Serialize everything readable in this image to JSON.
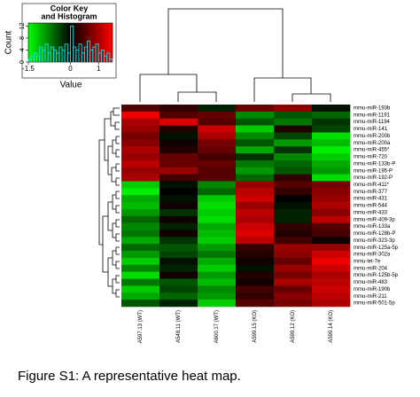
{
  "chart_data": [
    {
      "type": "heatmap",
      "columns": [
        "A597.13 (WT)",
        "A548.11 (WT)",
        "A600.17 (WT)",
        "A599.15 (KO)",
        "A599.12 (KO)",
        "A599.14 (KO)"
      ],
      "rows": [
        "mmu-miR-193b",
        "mmu-miR-1191",
        "mmu-miR-1194",
        "mmu-miR-141",
        "mmu-miR-200b",
        "mmu-miR-200a",
        "mmu-miR-455*",
        "mmu-miR-720",
        "mmu-miR-133b-P",
        "mmu-miR-195-P",
        "mmu-miR-192-P",
        "mmu-miR-411*",
        "mmu-miR-377",
        "mmu-miR-431",
        "mmu-miR-544",
        "mmu-miR-433",
        "mmu-miR-409-3p",
        "mmu-miR-133a",
        "mmu-miR-128b-P",
        "mmu-miR-323-3p",
        "mmu-miR-125a-5p",
        "mmu-miR-302a",
        "mmu-let-7e",
        "mmu-miR-204",
        "mmu-miR-125b-5p",
        "mmu-miR-483",
        "mmu-miR-190b",
        "mmu-miR-211",
        "mmu-miR-501-5p"
      ],
      "values": [
        [
          0.5,
          0.3,
          -0.2,
          0.6,
          0.8,
          -0.1
        ],
        [
          1.4,
          0.5,
          0.6,
          -0.8,
          -0.5,
          -0.6
        ],
        [
          1.0,
          1.3,
          0.5,
          -0.5,
          -0.7,
          -0.3
        ],
        [
          0.9,
          0.2,
          1.2,
          -1.2,
          0.2,
          -0.4
        ],
        [
          0.7,
          -0.1,
          1.0,
          -0.8,
          -0.4,
          -1.3
        ],
        [
          0.8,
          0.1,
          0.7,
          -0.5,
          -0.9,
          -1.1
        ],
        [
          1.0,
          0.2,
          0.6,
          -1.0,
          -0.3,
          -1.4
        ],
        [
          0.9,
          0.6,
          0.4,
          -0.3,
          -0.8,
          -1.2
        ],
        [
          1.1,
          0.6,
          0.6,
          -0.7,
          -0.6,
          -1.0
        ],
        [
          0.9,
          0.9,
          0.5,
          -0.9,
          -0.5,
          -0.9
        ],
        [
          1.0,
          0.4,
          0.5,
          -0.6,
          0.3,
          -1.3
        ],
        [
          -1.2,
          -0.1,
          -0.8,
          0.9,
          0.5,
          0.7
        ],
        [
          -1.4,
          0.0,
          -0.6,
          1.1,
          0.3,
          0.8
        ],
        [
          -1.0,
          -0.1,
          -1.2,
          1.2,
          0.0,
          0.9
        ],
        [
          -1.1,
          0.1,
          -1.3,
          0.9,
          -0.1,
          1.0
        ],
        [
          -0.9,
          -0.3,
          -1.2,
          1.1,
          -0.2,
          0.8
        ],
        [
          -0.6,
          0.1,
          -1.3,
          1.0,
          -0.2,
          1.1
        ],
        [
          -0.8,
          -0.2,
          -1.0,
          1.2,
          0.3,
          0.5
        ],
        [
          -0.7,
          0.1,
          -1.1,
          1.3,
          0.2,
          0.4
        ],
        [
          -1.0,
          -0.3,
          -1.2,
          1.1,
          0.4,
          0.1
        ],
        [
          -0.6,
          -0.5,
          -0.9,
          0.3,
          0.9,
          0.9
        ],
        [
          -0.9,
          -0.4,
          -0.7,
          0.2,
          0.8,
          1.2
        ],
        [
          -1.2,
          -0.1,
          -1.0,
          0.1,
          0.6,
          1.4
        ],
        [
          -0.8,
          -0.2,
          -1.2,
          -0.1,
          0.9,
          1.2
        ],
        [
          -1.3,
          0.1,
          -0.9,
          0.2,
          0.7,
          1.0
        ],
        [
          -0.7,
          -0.5,
          -1.1,
          0.1,
          1.0,
          1.1
        ],
        [
          -1.2,
          -0.4,
          -0.8,
          0.4,
          0.6,
          1.2
        ],
        [
          -1.0,
          -0.6,
          -0.9,
          0.3,
          0.8,
          1.1
        ],
        [
          -0.5,
          -0.2,
          -1.2,
          0.5,
          0.7,
          1.0
        ]
      ],
      "colors": [
        "#00ff00",
        "#000000",
        "#ff0000"
      ],
      "zlim": [
        -1.5,
        1.5
      ]
    },
    {
      "type": "histogram",
      "title": [
        "Color Key",
        "and Histogram"
      ],
      "xlabel": "Value",
      "ylabel": "Count",
      "bins": [
        -1.5,
        -1.4,
        -1.3,
        -1.2,
        -1.1,
        -1.0,
        -0.9,
        -0.8,
        -0.7,
        -0.6,
        -0.5,
        -0.4,
        -0.3,
        -0.2,
        -0.1,
        0.0,
        0.1,
        0.2,
        0.3,
        0.4,
        0.5,
        0.6,
        0.7,
        0.8,
        0.9,
        1.0,
        1.1,
        1.2,
        1.3,
        1.4,
        1.5
      ],
      "counts": [
        1,
        2,
        3,
        2,
        5,
        4,
        6,
        3,
        5,
        4,
        3,
        5,
        4,
        6,
        3,
        12,
        5,
        4,
        6,
        3,
        5,
        7,
        4,
        5,
        6,
        3,
        4,
        2,
        3,
        1
      ],
      "color": "#00e5ee",
      "xlim": [
        -1.5,
        1.5
      ],
      "xticks": [
        -1.5,
        0,
        1
      ],
      "ylim": [
        0,
        13
      ],
      "yticks": [
        0,
        4,
        8,
        12
      ]
    }
  ],
  "caption": "Figure S1: A representative heat map."
}
